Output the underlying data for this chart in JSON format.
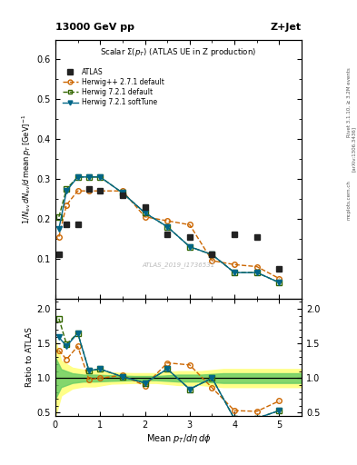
{
  "title_top": "13000 GeV pp",
  "title_right": "Z+Jet",
  "plot_title": "Scalar Σ(p_T) (ATLAS UE in Z production)",
  "watermark": "ATLAS_2019_I1736531",
  "right_label1": "Rivet 3.1.10, ≥ 3.2M events",
  "right_label2": "[arXiv:1306.3436]",
  "right_label3": "mcplots.cern.ch",
  "atlas_x": [
    0.08,
    0.25,
    0.5,
    0.75,
    1.0,
    1.5,
    2.0,
    2.5,
    3.0,
    3.5,
    4.0,
    4.5,
    5.0
  ],
  "atlas_y": [
    0.11,
    0.185,
    0.185,
    0.275,
    0.27,
    0.26,
    0.23,
    0.16,
    0.155,
    0.11,
    0.16,
    0.155,
    0.075
  ],
  "herwig_pp_x": [
    0.08,
    0.25,
    0.5,
    0.75,
    1.0,
    1.5,
    2.0,
    2.5,
    3.0,
    3.5,
    4.0,
    4.5,
    5.0
  ],
  "herwig_pp_y": [
    0.155,
    0.235,
    0.27,
    0.27,
    0.27,
    0.27,
    0.205,
    0.195,
    0.185,
    0.095,
    0.085,
    0.08,
    0.05
  ],
  "herwig721_def_x": [
    0.08,
    0.25,
    0.5,
    0.75,
    1.0,
    1.5,
    2.0,
    2.5,
    3.0,
    3.5,
    4.0,
    4.5,
    5.0
  ],
  "herwig721_def_y": [
    0.205,
    0.275,
    0.305,
    0.305,
    0.305,
    0.265,
    0.215,
    0.18,
    0.13,
    0.11,
    0.065,
    0.065,
    0.04
  ],
  "herwig721_soft_x": [
    0.08,
    0.25,
    0.5,
    0.75,
    1.0,
    1.5,
    2.0,
    2.5,
    3.0,
    3.5,
    4.0,
    4.5,
    5.0
  ],
  "herwig721_soft_y": [
    0.175,
    0.27,
    0.305,
    0.305,
    0.305,
    0.265,
    0.215,
    0.18,
    0.13,
    0.11,
    0.065,
    0.065,
    0.04
  ],
  "ratio_herwig_pp_y": [
    1.4,
    1.27,
    1.46,
    0.98,
    1.0,
    1.04,
    0.89,
    1.22,
    1.19,
    0.86,
    0.53,
    0.52,
    0.67
  ],
  "ratio_herwig721_def_y": [
    1.86,
    1.49,
    1.65,
    1.11,
    1.13,
    1.02,
    0.93,
    1.13,
    0.84,
    1.0,
    0.41,
    0.42,
    0.53
  ],
  "ratio_herwig721_soft_y": [
    1.59,
    1.46,
    1.65,
    1.11,
    1.13,
    1.02,
    0.93,
    1.13,
    0.84,
    1.0,
    0.41,
    0.42,
    0.53
  ],
  "band_x": [
    0.0,
    0.13,
    0.38,
    0.63,
    0.88,
    1.25,
    1.75,
    2.25,
    2.75,
    3.25,
    3.75,
    4.25,
    4.75,
    5.5
  ],
  "band_yellow_low": [
    0.45,
    0.75,
    0.85,
    0.88,
    0.88,
    0.92,
    0.93,
    0.93,
    0.9,
    0.9,
    0.87,
    0.87,
    0.87,
    0.87
  ],
  "band_yellow_high": [
    1.55,
    1.25,
    1.15,
    1.12,
    1.12,
    1.08,
    1.07,
    1.07,
    1.1,
    1.1,
    1.13,
    1.13,
    1.13,
    1.13
  ],
  "band_green_low": [
    0.7,
    0.87,
    0.93,
    0.95,
    0.95,
    0.96,
    0.97,
    0.97,
    0.95,
    0.95,
    0.93,
    0.93,
    0.93,
    0.93
  ],
  "band_green_high": [
    1.3,
    1.13,
    1.07,
    1.05,
    1.05,
    1.04,
    1.03,
    1.03,
    1.05,
    1.05,
    1.07,
    1.07,
    1.07,
    1.07
  ],
  "color_atlas": "#222222",
  "color_herwig_pp": "#cc6600",
  "color_herwig721_def": "#336600",
  "color_herwig721_soft": "#006688",
  "ylim_main": [
    0.0,
    0.65
  ],
  "ylim_ratio": [
    0.45,
    2.15
  ],
  "xlim": [
    0.0,
    5.5
  ],
  "yticks_main": [
    0.1,
    0.2,
    0.3,
    0.4,
    0.5,
    0.6
  ],
  "yticks_ratio": [
    0.5,
    1.0,
    1.5,
    2.0
  ],
  "xticks": [
    0,
    1,
    2,
    3,
    4,
    5
  ]
}
